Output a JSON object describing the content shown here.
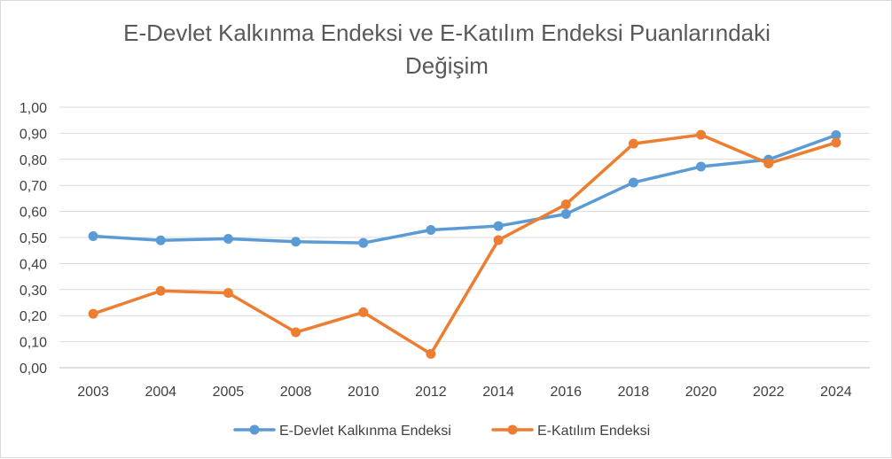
{
  "chart_data": {
    "type": "line",
    "title_lines": [
      "E-Devlet Kalkınma Endeksi ve E-Katılım Endeksi Puanlarındaki",
      "Değişim"
    ],
    "categories": [
      "2003",
      "2004",
      "2005",
      "2008",
      "2010",
      "2012",
      "2014",
      "2016",
      "2018",
      "2020",
      "2022",
      "2024"
    ],
    "y_ticks": [
      "0,00",
      "0,10",
      "0,20",
      "0,30",
      "0,40",
      "0,50",
      "0,60",
      "0,70",
      "0,80",
      "0,90",
      "1,00"
    ],
    "ylim": [
      0,
      1
    ],
    "grid": true,
    "legend_position": "bottom",
    "series": [
      {
        "name": "E-Devlet Kalkınma Endeksi",
        "color": "#5b9bd5",
        "values": [
          0.505,
          0.489,
          0.495,
          0.484,
          0.479,
          0.529,
          0.544,
          0.59,
          0.711,
          0.772,
          0.799,
          0.893
        ]
      },
      {
        "name": "E-Katılım Endeksi",
        "color": "#ed7d31",
        "values": [
          0.207,
          0.295,
          0.287,
          0.136,
          0.213,
          0.053,
          0.49,
          0.627,
          0.86,
          0.894,
          0.784,
          0.864
        ]
      }
    ]
  },
  "colors": {
    "grid": "#d9d9d9",
    "axis": "#bfbfbf",
    "title": "#595959",
    "text": "#404040"
  }
}
